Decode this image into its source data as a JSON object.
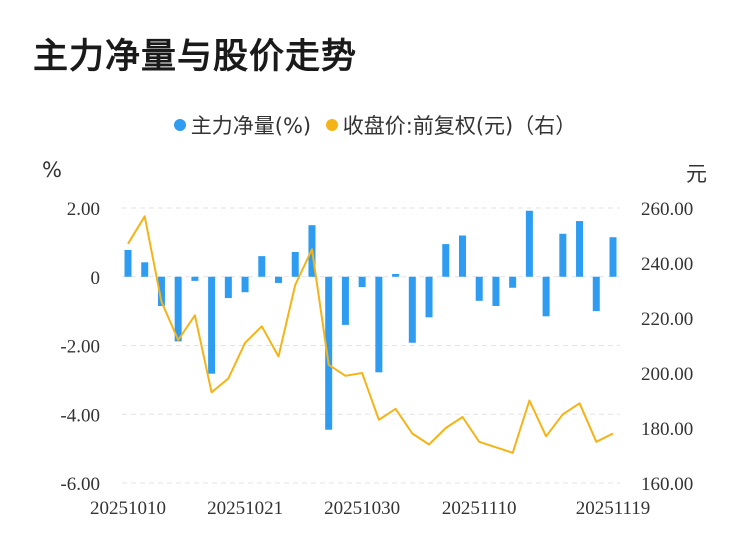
{
  "title": "主力净量与股价走势",
  "legend": [
    {
      "label": "主力净量(%)",
      "color": "#2e9cf0"
    },
    {
      "label": "收盘价:前复权(元)（右）",
      "color": "#f4b417"
    }
  ],
  "units": {
    "left": "%",
    "right": "元"
  },
  "chart_data": {
    "type": "bar+line",
    "x_tick_labels": [
      "20251010",
      "20251021",
      "20251030",
      "20251110",
      "20251119"
    ],
    "y_left": {
      "min": -6,
      "max": 2,
      "ticks": [
        "2.00",
        "0",
        "-2.00",
        "-4.00",
        "-6.00"
      ],
      "tick_values": [
        2,
        0,
        -2,
        -4,
        -6
      ]
    },
    "y_right": {
      "min": 160,
      "max": 260,
      "ticks": [
        "260.00",
        "240.00",
        "220.00",
        "200.00",
        "180.00",
        "160.00"
      ],
      "tick_values": [
        260,
        240,
        220,
        200,
        180,
        160
      ]
    },
    "series": [
      {
        "name": "主力净量(%)",
        "type": "bar",
        "color": "#2e9cf0",
        "values": [
          0.78,
          0.42,
          -0.85,
          -1.88,
          -0.12,
          -2.82,
          -0.62,
          -0.45,
          0.6,
          -0.18,
          0.72,
          1.5,
          -4.45,
          -1.4,
          -0.3,
          -2.78,
          0.08,
          -1.92,
          -1.18,
          0.95,
          1.2,
          -0.7,
          -0.85,
          -0.32,
          1.92,
          -1.15,
          1.25,
          1.62,
          -1.0,
          1.15
        ]
      },
      {
        "name": "收盘价:前复权(元)（右）",
        "type": "line",
        "color": "#f4b417",
        "values": [
          247,
          257,
          226,
          212,
          221,
          193,
          198,
          211,
          217,
          206,
          232,
          245,
          203,
          199,
          200,
          183,
          187,
          178,
          174,
          180,
          184,
          175,
          173,
          171,
          190,
          177,
          185,
          189,
          175,
          178
        ]
      }
    ]
  }
}
